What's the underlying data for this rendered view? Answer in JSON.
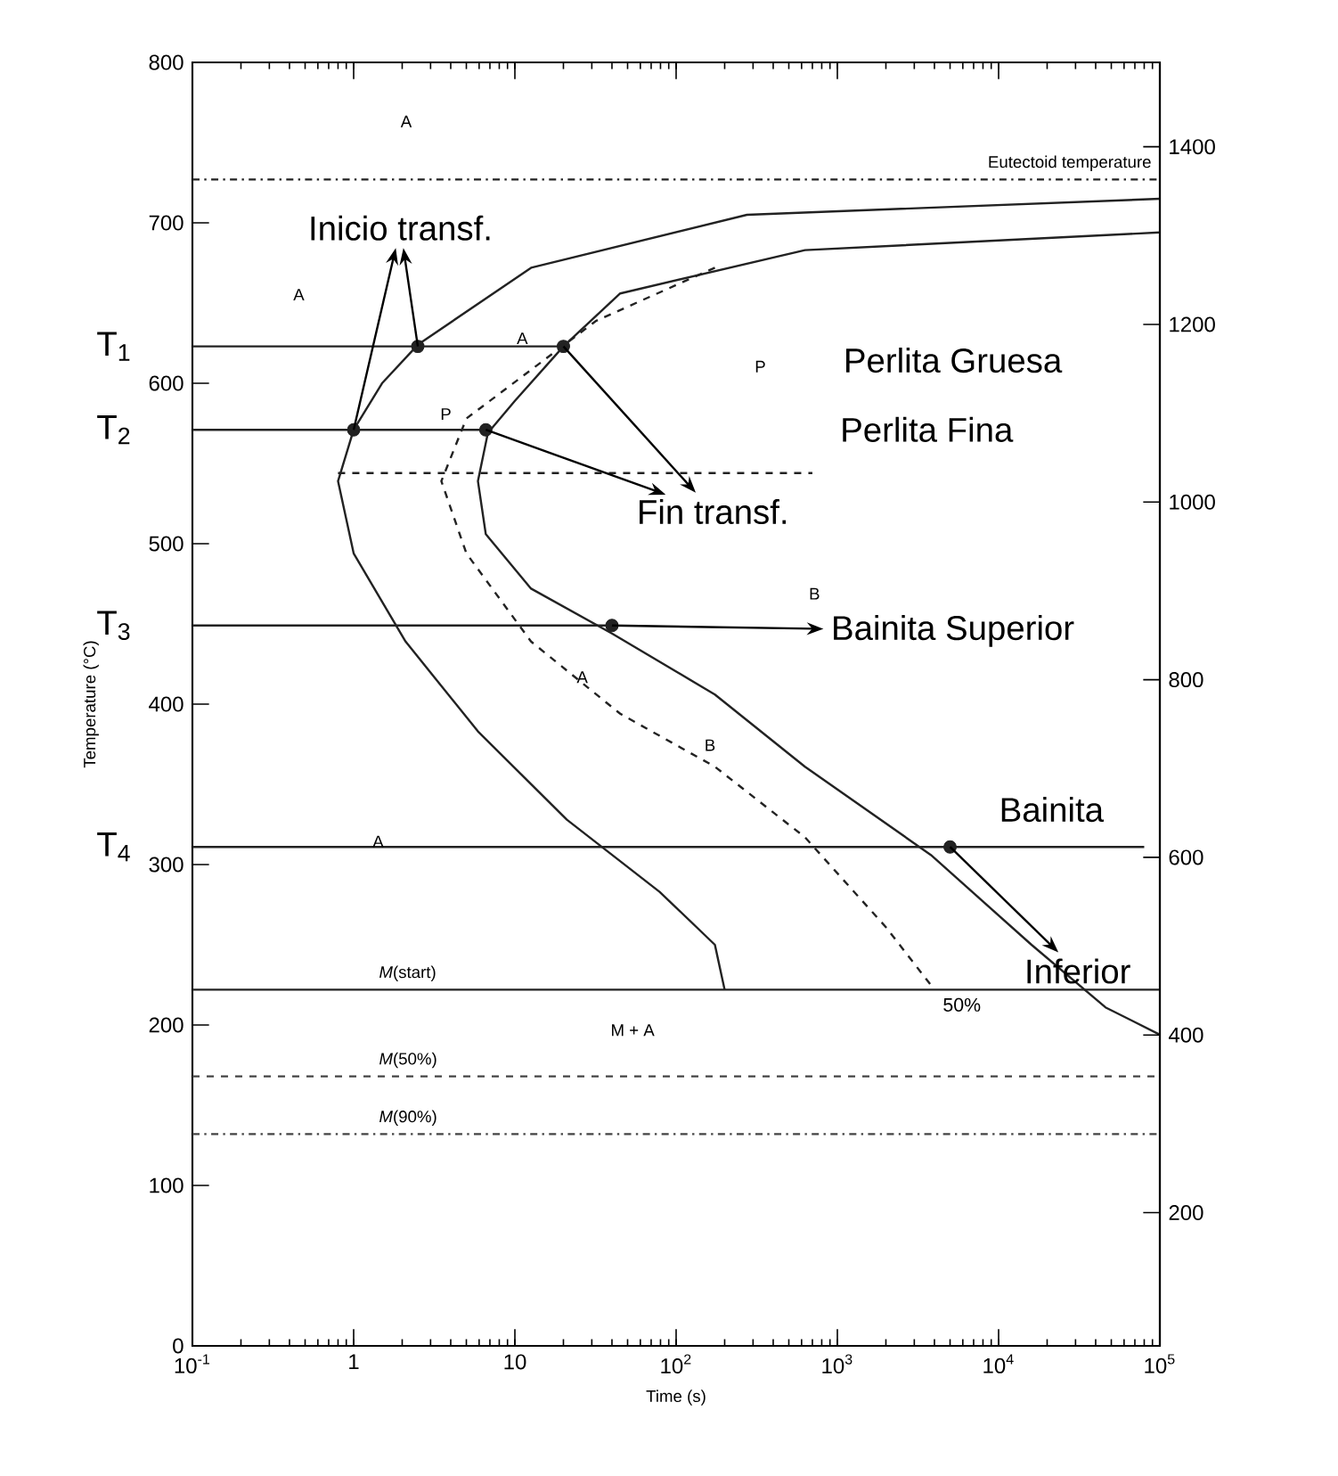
{
  "chart_data": {
    "type": "line",
    "xlabel": "Time (s)",
    "ylabel": "Temperature (°C)",
    "log": "x",
    "grid": false,
    "xlim": [
      0.1,
      100000
    ],
    "ylim": [
      0,
      800
    ],
    "y2lim": [
      50,
      1495
    ],
    "xticks": [
      {
        "value": 0.1,
        "label": "10$^{-1}$"
      },
      {
        "value": 1,
        "label": "1"
      },
      {
        "value": 10,
        "label": "10"
      },
      {
        "value": 100,
        "label": "10$^{2}$"
      },
      {
        "value": 1000,
        "label": "10$^{3}$"
      },
      {
        "value": 10000,
        "label": "10$^{4}$"
      },
      {
        "value": 100000,
        "label": "10$^{5}$"
      }
    ],
    "yticks": [
      0,
      100,
      200,
      300,
      400,
      500,
      600,
      700,
      800
    ],
    "y2ticks": [
      200,
      400,
      600,
      800,
      1000,
      1200,
      1400
    ],
    "series": [
      {
        "color": "#222222",
        "line_style": "solid",
        "x": [
          100000,
          275,
          12.6,
          2.5,
          1.5,
          1,
          0.8,
          1,
          2.1,
          5.9,
          21,
          79,
          174,
          200
        ],
        "values": [
          715,
          705,
          672,
          624,
          600,
          571,
          539,
          494,
          439,
          383,
          328,
          283,
          250,
          222
        ]
      },
      {
        "color": "#222222",
        "line_style": "solid",
        "x": [
          100000,
          630,
          45,
          20,
          10,
          6.8,
          5.9,
          6.6,
          12.6,
          40,
          174,
          630,
          3800,
          16000,
          46000,
          100000
        ],
        "values": [
          694,
          683,
          656,
          623,
          589,
          569,
          539,
          506,
          472,
          444,
          406,
          361,
          306,
          250,
          211,
          194
        ]
      },
      {
        "name": "50%",
        "color": "#222222",
        "line_style": "dashed",
        "x": [
          174,
          32,
          5,
          3.5,
          5,
          12.6,
          45,
          174,
          630,
          2000,
          4000
        ],
        "values": [
          672,
          639,
          578,
          539,
          494,
          439,
          394,
          361,
          317,
          261,
          222
        ]
      },
      {
        "name": "T$_{1}$",
        "color": "#222222",
        "line_style": "solid",
        "x": [
          0.1,
          20
        ],
        "values": [
          623,
          623
        ]
      },
      {
        "name": "T$_{2}$",
        "color": "#222222",
        "line_style": "solid",
        "x": [
          0.1,
          6.6
        ],
        "values": [
          571,
          571
        ]
      },
      {
        "name": "T$_{3}$",
        "color": "#222222",
        "line_style": "solid",
        "x": [
          0.1,
          40
        ],
        "values": [
          449,
          449
        ]
      },
      {
        "name": "T$_{4}$",
        "color": "#222222",
        "line_style": "solid",
        "x": [
          0.1,
          80000
        ],
        "values": [
          311,
          311
        ]
      },
      {
        "color": "#222222",
        "line_style": "dashed",
        "x": [
          0.8,
          700
        ],
        "values": [
          544,
          544
        ]
      },
      {
        "type": "scatter",
        "color": "#222222",
        "x": [
          2.5,
          20,
          1,
          6.6,
          40,
          5000
        ],
        "values": [
          623,
          623,
          571,
          571,
          449,
          311
        ]
      }
    ],
    "ref_lines": [
      {
        "axis": "y",
        "value": 727,
        "label": "Eutectoid temperature",
        "line_style": "dashdot",
        "color": "#222222"
      },
      {
        "axis": "y",
        "value": 222,
        "label": "*M*(start)",
        "line_style": "solid",
        "color": "#222222"
      },
      {
        "axis": "y",
        "value": 168,
        "label": "*M*(50%)",
        "line_style": "dashed",
        "color": "#444444"
      },
      {
        "axis": "y",
        "value": 132,
        "label": "*M*(90%)",
        "line_style": "dashdot",
        "color": "#444444"
      }
    ],
    "annotations": [
      "Inicio transf.",
      "Perlita Gruesa",
      "Perlita Fina",
      "Fin transf.",
      "Bainita Superior",
      "Bainita",
      "Inferior",
      "A",
      "A",
      "A",
      "P",
      "P",
      "B",
      "A",
      "B",
      "A",
      "M + A"
    ]
  }
}
